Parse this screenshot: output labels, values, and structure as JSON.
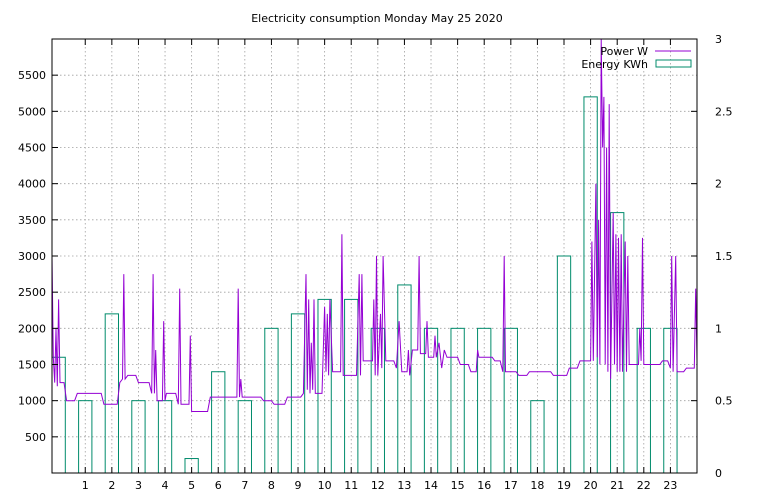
{
  "chart_data": {
    "type": "line",
    "title": "Electricity consumption Monday May 25 2020",
    "xlabel": "",
    "ylabel": "",
    "xlim": [
      -0.25,
      24.0
    ],
    "ylim": [
      0,
      6000
    ],
    "y2lim": [
      0,
      3
    ],
    "grid": true,
    "legend_position": "top-right",
    "x_ticks": [
      1,
      2,
      3,
      4,
      5,
      6,
      7,
      8,
      9,
      10,
      11,
      12,
      13,
      14,
      15,
      16,
      17,
      18,
      19,
      20,
      21,
      22,
      23
    ],
    "y_ticks": [
      500,
      1000,
      1500,
      2000,
      2500,
      3000,
      3500,
      4000,
      4500,
      5000,
      5500
    ],
    "y2_ticks": [
      0,
      0.5,
      1,
      1.5,
      2,
      2.5,
      3
    ],
    "series": [
      {
        "name": "Power W",
        "axis": "y1",
        "color": "#9400d3",
        "style": "line",
        "points": [
          [
            -0.25,
            3000
          ],
          [
            -0.2,
            1600
          ],
          [
            -0.15,
            1250
          ],
          [
            -0.1,
            2000
          ],
          [
            -0.05,
            1200
          ],
          [
            0,
            2400
          ],
          [
            0.05,
            1250
          ],
          [
            0.2,
            1250
          ],
          [
            0.3,
            1000
          ],
          [
            0.6,
            1000
          ],
          [
            0.7,
            1100
          ],
          [
            1.6,
            1100
          ],
          [
            1.7,
            950
          ],
          [
            2.2,
            950
          ],
          [
            2.3,
            1250
          ],
          [
            2.4,
            1300
          ],
          [
            2.45,
            2750
          ],
          [
            2.5,
            1300
          ],
          [
            2.6,
            1350
          ],
          [
            2.9,
            1350
          ],
          [
            3.0,
            1250
          ],
          [
            3.4,
            1250
          ],
          [
            3.5,
            1100
          ],
          [
            3.55,
            2750
          ],
          [
            3.6,
            1100
          ],
          [
            3.65,
            1700
          ],
          [
            3.7,
            1000
          ],
          [
            3.9,
            1000
          ],
          [
            3.95,
            2100
          ],
          [
            4.0,
            1000
          ],
          [
            4.05,
            1100
          ],
          [
            4.4,
            1100
          ],
          [
            4.5,
            950
          ],
          [
            4.55,
            2550
          ],
          [
            4.6,
            950
          ],
          [
            4.9,
            950
          ],
          [
            4.95,
            1900
          ],
          [
            5.0,
            850
          ],
          [
            5.6,
            850
          ],
          [
            5.7,
            1050
          ],
          [
            6.7,
            1050
          ],
          [
            6.75,
            2550
          ],
          [
            6.8,
            1050
          ],
          [
            6.85,
            1300
          ],
          [
            6.9,
            1050
          ],
          [
            7.6,
            1050
          ],
          [
            7.7,
            1000
          ],
          [
            8.0,
            1000
          ],
          [
            8.1,
            950
          ],
          [
            8.5,
            950
          ],
          [
            8.6,
            1050
          ],
          [
            9.1,
            1050
          ],
          [
            9.2,
            1100
          ],
          [
            9.3,
            2750
          ],
          [
            9.35,
            1150
          ],
          [
            9.4,
            2400
          ],
          [
            9.45,
            1100
          ],
          [
            9.5,
            1800
          ],
          [
            9.55,
            1150
          ],
          [
            9.6,
            2400
          ],
          [
            9.65,
            1100
          ],
          [
            9.9,
            1100
          ],
          [
            10.0,
            2300
          ],
          [
            10.05,
            1400
          ],
          [
            10.1,
            2200
          ],
          [
            10.15,
            1350
          ],
          [
            10.2,
            2400
          ],
          [
            10.3,
            1400
          ],
          [
            10.6,
            1400
          ],
          [
            10.65,
            3300
          ],
          [
            10.7,
            1350
          ],
          [
            11.2,
            1350
          ],
          [
            11.3,
            2750
          ],
          [
            11.35,
            1350
          ],
          [
            11.4,
            2750
          ],
          [
            11.45,
            1550
          ],
          [
            11.8,
            1550
          ],
          [
            11.85,
            2400
          ],
          [
            11.9,
            1350
          ],
          [
            11.95,
            3000
          ],
          [
            12.0,
            1350
          ],
          [
            12.1,
            2200
          ],
          [
            12.15,
            1450
          ],
          [
            12.2,
            3000
          ],
          [
            12.3,
            1550
          ],
          [
            12.6,
            1550
          ],
          [
            12.7,
            1450
          ],
          [
            12.8,
            2100
          ],
          [
            12.9,
            1400
          ],
          [
            13.1,
            1400
          ],
          [
            13.15,
            1700
          ],
          [
            13.2,
            1350
          ],
          [
            13.3,
            1700
          ],
          [
            13.5,
            1700
          ],
          [
            13.55,
            3000
          ],
          [
            13.6,
            1650
          ],
          [
            13.8,
            1650
          ],
          [
            13.85,
            2100
          ],
          [
            13.9,
            1600
          ],
          [
            14.1,
            1600
          ],
          [
            14.15,
            1900
          ],
          [
            14.2,
            1600
          ],
          [
            14.3,
            1800
          ],
          [
            14.4,
            1450
          ],
          [
            14.5,
            1700
          ],
          [
            14.6,
            1600
          ],
          [
            15.0,
            1600
          ],
          [
            15.1,
            1500
          ],
          [
            15.4,
            1500
          ],
          [
            15.5,
            1400
          ],
          [
            15.7,
            1400
          ],
          [
            15.75,
            1700
          ],
          [
            15.8,
            1600
          ],
          [
            16.3,
            1600
          ],
          [
            16.4,
            1550
          ],
          [
            16.6,
            1550
          ],
          [
            16.7,
            1400
          ],
          [
            16.75,
            3000
          ],
          [
            16.8,
            1400
          ],
          [
            17.2,
            1400
          ],
          [
            17.3,
            1350
          ],
          [
            17.6,
            1350
          ],
          [
            17.7,
            1400
          ],
          [
            18.5,
            1400
          ],
          [
            18.6,
            1350
          ],
          [
            19.1,
            1350
          ],
          [
            19.2,
            1450
          ],
          [
            19.5,
            1450
          ],
          [
            19.6,
            1550
          ],
          [
            20.0,
            1550
          ],
          [
            20.05,
            3200
          ],
          [
            20.1,
            1550
          ],
          [
            20.2,
            4000
          ],
          [
            20.25,
            1600
          ],
          [
            20.3,
            3500
          ],
          [
            20.35,
            1500
          ],
          [
            20.4,
            6000
          ],
          [
            20.45,
            4500
          ],
          [
            20.5,
            5200
          ],
          [
            20.55,
            1500
          ],
          [
            20.6,
            4500
          ],
          [
            20.65,
            1400
          ],
          [
            20.7,
            5100
          ],
          [
            20.75,
            1300
          ],
          [
            20.85,
            3600
          ],
          [
            20.9,
            1500
          ],
          [
            20.95,
            3300
          ],
          [
            21.0,
            1400
          ],
          [
            21.05,
            3250
          ],
          [
            21.1,
            1400
          ],
          [
            21.15,
            3300
          ],
          [
            21.2,
            1400
          ],
          [
            21.3,
            3200
          ],
          [
            21.35,
            1400
          ],
          [
            21.4,
            3000
          ],
          [
            21.45,
            1500
          ],
          [
            21.8,
            1500
          ],
          [
            21.85,
            2000
          ],
          [
            21.9,
            1550
          ],
          [
            21.95,
            3250
          ],
          [
            22.0,
            1500
          ],
          [
            22.6,
            1500
          ],
          [
            22.7,
            1550
          ],
          [
            22.9,
            1550
          ],
          [
            23.0,
            1450
          ],
          [
            23.05,
            3000
          ],
          [
            23.1,
            1400
          ],
          [
            23.2,
            3000
          ],
          [
            23.25,
            1400
          ],
          [
            23.5,
            1400
          ],
          [
            23.6,
            1450
          ],
          [
            23.9,
            1450
          ],
          [
            23.95,
            2550
          ],
          [
            24.0,
            1550
          ]
        ]
      },
      {
        "name": "Energy KWh",
        "axis": "y2",
        "color": "#008b6b",
        "style": "boxes",
        "box_width": 0.5,
        "bars": [
          [
            0,
            0.8
          ],
          [
            1,
            0.5
          ],
          [
            2,
            1.1
          ],
          [
            3,
            0.5
          ],
          [
            4,
            0.5
          ],
          [
            5,
            0.1
          ],
          [
            6,
            0.7
          ],
          [
            7,
            0.5
          ],
          [
            8,
            1.0
          ],
          [
            9,
            1.1
          ],
          [
            10,
            1.2
          ],
          [
            11,
            1.2
          ],
          [
            12,
            1.0
          ],
          [
            13,
            1.3
          ],
          [
            14,
            1.0
          ],
          [
            15,
            1.0
          ],
          [
            16,
            1.0
          ],
          [
            17,
            1.0
          ],
          [
            18,
            0.5
          ],
          [
            19,
            1.5
          ],
          [
            20,
            2.6
          ],
          [
            21,
            1.8
          ],
          [
            22,
            1.0
          ],
          [
            23,
            1.0
          ]
        ]
      }
    ]
  }
}
